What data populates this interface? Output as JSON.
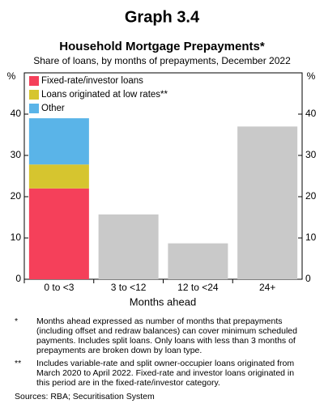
{
  "chart_data": {
    "type": "bar",
    "stacked": true,
    "title": "Graph 3.4",
    "subtitle": "Household Mortgage Prepayments*",
    "description": "Share of loans, by months of prepayments, December 2022",
    "y_unit": "%",
    "xlabel": "Months ahead",
    "categories": [
      "0 to <3",
      "3 to <12",
      "12 to <24",
      "24+"
    ],
    "series": [
      {
        "name": "Fixed-rate/investor loans",
        "color": "#f5405a",
        "values": [
          22,
          null,
          null,
          null
        ]
      },
      {
        "name": "Loans originated at low rates**",
        "color": "#d6c52f",
        "values": [
          5.8,
          null,
          null,
          null
        ]
      },
      {
        "name": "Other",
        "color": "#5ab4e8",
        "values": [
          11.2,
          null,
          null,
          null
        ]
      },
      {
        "color": "#c9c9c9",
        "values": [
          null,
          15.7,
          8.7,
          37
        ]
      }
    ],
    "ylim": [
      0,
      50
    ],
    "yticks": [
      0,
      10,
      20,
      30,
      40
    ],
    "legend": "top-left",
    "footnotes": [
      {
        "marker": "*",
        "text": "Months ahead expressed as number of months that prepayments (including offset and redraw balances) can cover minimum scheduled payments. Includes split loans. Only loans with less than 3 months of prepayments are broken down by loan type."
      },
      {
        "marker": "**",
        "text": "Includes variable-rate and split owner-occupier loans originated from March 2020 to April 2022. Fixed-rate and investor loans originated in this period are in the fixed-rate/investor category."
      }
    ],
    "sources": "Sources: RBA; Securitisation System"
  }
}
